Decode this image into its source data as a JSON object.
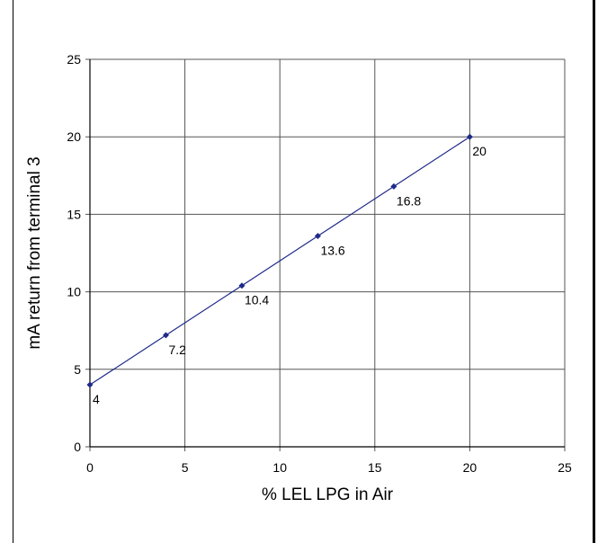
{
  "chart_data": {
    "type": "line",
    "title": "",
    "xlabel": "% LEL LPG in Air",
    "ylabel": "mA return from terminal 3",
    "xlim": [
      0,
      25
    ],
    "ylim": [
      0,
      25
    ],
    "x_ticks": [
      0,
      5,
      10,
      15,
      20,
      25
    ],
    "y_ticks": [
      0,
      5,
      10,
      15,
      20,
      25
    ],
    "grid": true,
    "legend": "none",
    "series": [
      {
        "color": "#1f2a8a",
        "x": [
          0,
          4,
          8,
          12,
          16,
          20
        ],
        "y": [
          4,
          7.2,
          10.4,
          13.6,
          16.8,
          20
        ],
        "data_labels": [
          "4",
          "7.2",
          "10.4",
          "13.6",
          "16.8",
          "20"
        ]
      }
    ]
  }
}
